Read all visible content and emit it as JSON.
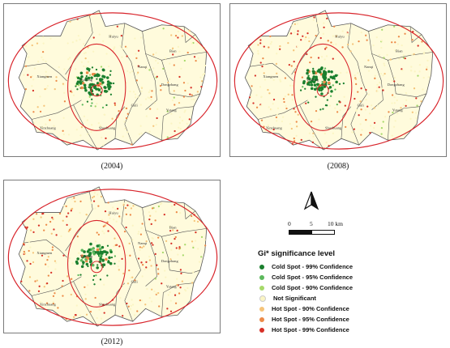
{
  "panels": [
    {
      "caption": "(2004)",
      "hot_density": 0.35,
      "cold_density": 0.9
    },
    {
      "caption": "(2008)",
      "hot_density": 0.6,
      "cold_density": 0.85
    },
    {
      "caption": "(2012)",
      "hot_density": 0.85,
      "cold_density": 0.65
    }
  ],
  "place_labels": [
    "Huiyu",
    "Bian",
    "Xiangmen",
    "Yunlong",
    "Nanqi",
    "Dongzhang",
    "Guli",
    "Xinzhuang",
    "Shuzhuang",
    "Yutang"
  ],
  "scale_bar": {
    "ticks": [
      "0",
      "5",
      "10 km"
    ]
  },
  "legend": {
    "title": "Gi* significance level",
    "items": [
      {
        "label": "Cold Spot - 99% Confidence",
        "color": "#1a7f2e"
      },
      {
        "label": "Cold Spot - 95% Confidence",
        "color": "#5cb85c"
      },
      {
        "label": "Cold Spot - 90% Confidence",
        "color": "#a6d96a"
      },
      {
        "label": "Not Significant",
        "color": "#fbf5c4"
      },
      {
        "label": "Hot Spot - 90% Confidence",
        "color": "#f5c47a"
      },
      {
        "label": "Hot Spot - 95% Confidence",
        "color": "#ec8a48"
      },
      {
        "label": "Hot Spot - 99% Confidence",
        "color": "#d73027"
      }
    ]
  },
  "colors": {
    "ring": "#d8232a",
    "boundary": "#555555",
    "background_fill": "#fffbdc"
  }
}
